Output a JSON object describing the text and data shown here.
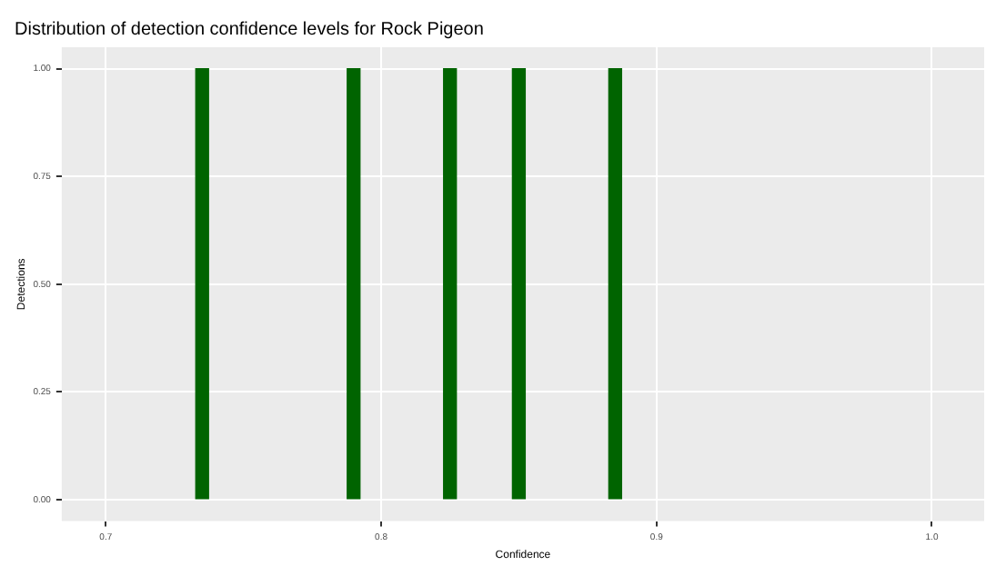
{
  "chart_data": {
    "type": "bar",
    "title": "Distribution of detection confidence levels for Rock Pigeon",
    "xlabel": "Confidence",
    "ylabel": "Detections",
    "x": [
      0.735,
      0.79,
      0.825,
      0.85,
      0.885
    ],
    "values": [
      1,
      1,
      1,
      1,
      1
    ],
    "color": "#006400",
    "xlim": [
      0.684,
      1.019
    ],
    "xticks": [
      {
        "value": 0.7,
        "label": "0.7"
      },
      {
        "value": 0.8,
        "label": "0.8"
      },
      {
        "value": 0.9,
        "label": "0.9"
      },
      {
        "value": 1.0,
        "label": "1.0"
      }
    ],
    "ylim": [
      -0.05,
      1.05
    ],
    "yticks": [
      {
        "value": 0,
        "label": "0.00"
      },
      {
        "value": 0.25,
        "label": "0.25"
      },
      {
        "value": 0.5,
        "label": "0.50"
      },
      {
        "value": 0.75,
        "label": "0.75"
      },
      {
        "value": 1,
        "label": "1.00"
      }
    ],
    "grid": true,
    "legend": false
  }
}
